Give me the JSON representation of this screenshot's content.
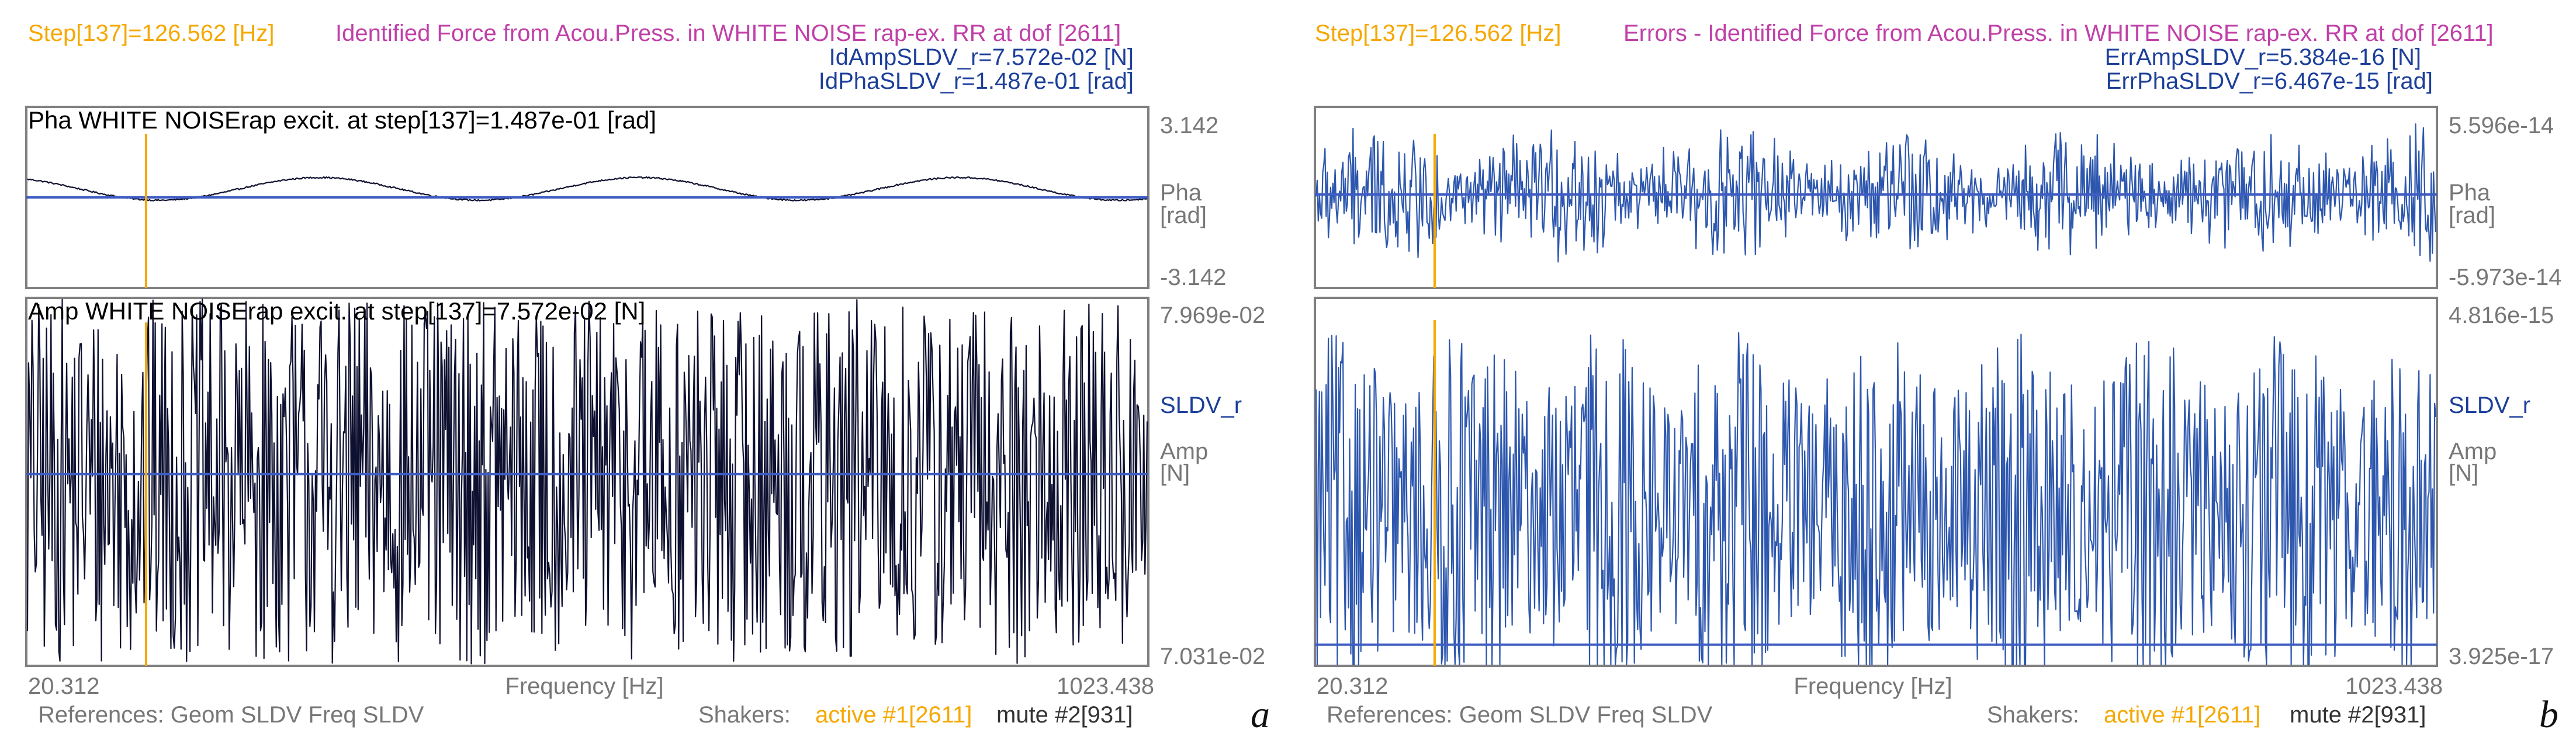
{
  "colors": {
    "orange": "#F5A800",
    "magenta": "#C040A8",
    "blue": "#1C3F9A",
    "gray": "#777777",
    "dark": "#0E1030",
    "frame": "#808080",
    "signal_blue": "#2D57AE",
    "hline": "#3E5CC2"
  },
  "panels": [
    {
      "letter": "a",
      "step_label": "Step[137]=126.562 [Hz]",
      "title": "Identified Force from Acou.Press. in WHITE NOISE rap-ex. RR at dof [2611]",
      "value_lines": [
        "IdAmpSLDV_r=7.572e-02 [N]",
        "IdPhaSLDV_r=1.487e-01 [rad]"
      ],
      "freq_label": "Frequency [Hz]",
      "references_label": "References: Geom SLDV Freq SLDV",
      "shakers_label": "Shakers:",
      "active_label": "active #1[2611]",
      "mute_label": "mute #2[931]"
    },
    {
      "letter": "b",
      "step_label": "Step[137]=126.562 [Hz]",
      "title": "Errors - Identified Force from Acou.Press. in WHITE NOISE rap-ex. RR at dof [2611]",
      "value_lines": [
        "ErrAmpSLDV_r=5.384e-16 [N]",
        "ErrPhaSLDV_r=6.467e-15 [rad]"
      ],
      "freq_label": "Frequency [Hz]",
      "references_label": "References: Geom SLDV Freq SLDV",
      "shakers_label": "Shakers:",
      "active_label": "active #1[2611]",
      "mute_label": "mute #2[931]"
    }
  ],
  "chart_data": [
    {
      "type": "line",
      "panel": "a",
      "subplot": "phase",
      "title": "Pha WHITE NOISErap excit. at step[137]=1.487e-01 [rad]",
      "xlabel": "Frequency [Hz]",
      "ylabel": "Pha [rad]",
      "xlim": [
        20.312,
        1023.438
      ],
      "ylim": [
        -3.142,
        3.142
      ],
      "ytick_labels": [
        "3.142",
        "-3.142"
      ],
      "xtick_labels": [
        "20.312",
        "1023.438"
      ],
      "hline": 0.0,
      "marker_x": 126.562,
      "series": [
        {
          "name": "Pha",
          "pattern": "sinusoid",
          "mean": 0.3,
          "amplitude": 0.4,
          "cycles": 3.5
        }
      ]
    },
    {
      "type": "line",
      "panel": "a",
      "subplot": "amplitude",
      "title": "Amp WHITE NOISErap excit. at step[137]=7.572e-02 [N]",
      "xlabel": "Frequency [Hz]",
      "ylabel": "Amp [N]",
      "series_label": "SLDV_r",
      "xlim": [
        20.312,
        1023.438
      ],
      "ylim": [
        0.07031,
        0.07969
      ],
      "ytick_labels": [
        "7.969e-02",
        "7.031e-02"
      ],
      "xtick_labels": [
        "20.312",
        "1023.438"
      ],
      "hline": 0.0752,
      "marker_x": 126.562,
      "series": [
        {
          "name": "SLDV_r",
          "pattern": "white-noise",
          "mean": 0.075,
          "spread": 0.0047,
          "points": 1000
        }
      ]
    },
    {
      "type": "line",
      "panel": "b",
      "subplot": "phase",
      "xlabel": "Frequency [Hz]",
      "ylabel": "Pha [rad]",
      "xlim": [
        20.312,
        1023.438
      ],
      "ylim": [
        -5.973e-14,
        5.596e-14
      ],
      "ytick_labels": [
        "5.596e-14",
        "-5.973e-14"
      ],
      "xtick_labels": [
        "20.312",
        "1023.438"
      ],
      "hline": 0.0,
      "marker_x": 126.562,
      "series": [
        {
          "name": "ErrPha",
          "pattern": "noise-bursts",
          "mean": 0.0,
          "spread": 5e-14,
          "points": 1000
        }
      ]
    },
    {
      "type": "line",
      "panel": "b",
      "subplot": "amplitude",
      "xlabel": "Frequency [Hz]",
      "ylabel": "Amp [N]",
      "series_label": "SLDV_r",
      "xlim": [
        20.312,
        1023.438
      ],
      "ylim": [
        3.925e-17,
        4.816e-15
      ],
      "ytick_labels": [
        "4.816e-15",
        "3.925e-17"
      ],
      "xtick_labels": [
        "20.312",
        "1023.438"
      ],
      "hline": 3e-16,
      "marker_x": 126.562,
      "series": [
        {
          "name": "ErrAmp",
          "pattern": "noise",
          "mean": 2e-15,
          "spread": 2.4e-15,
          "points": 1000
        }
      ]
    }
  ]
}
